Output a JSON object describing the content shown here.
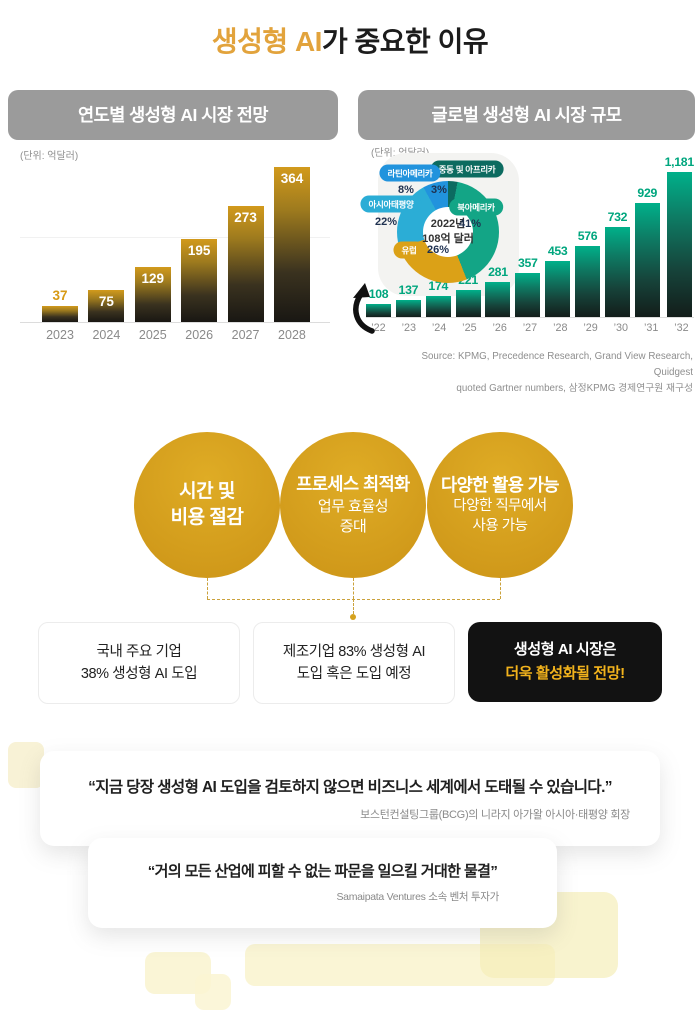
{
  "title": {
    "highlight": "생성형 AI",
    "rest": "가 중요한 이유"
  },
  "chart_data": [
    {
      "type": "bar",
      "title": "연도별 생성형 AI 시장 전망",
      "unit_label": "(단위: 억달러)",
      "categories": [
        "2023",
        "2024",
        "2025",
        "2026",
        "2027",
        "2028"
      ],
      "values": [
        37,
        75,
        129,
        195,
        273,
        364
      ],
      "value_labels": [
        "37",
        "75",
        "129",
        "195",
        "273",
        "364"
      ],
      "ylim": [
        0,
        400
      ],
      "grid": "single faint line",
      "legend": "none"
    },
    {
      "type": "bar",
      "title": "글로벌 생성형 AI 시장 규모",
      "unit_label": "(단위: 억달러)",
      "categories": [
        "’22",
        "’23",
        "’24",
        "’25",
        "’26",
        "’27",
        "’28",
        "’29",
        "’30",
        "’31",
        "’32"
      ],
      "values": [
        108,
        137,
        174,
        221,
        281,
        357,
        453,
        576,
        732,
        929,
        1181
      ],
      "value_labels": [
        "108",
        "137",
        "174",
        "221",
        "281",
        "357",
        "453",
        "576",
        "732",
        "929",
        "1,181"
      ],
      "ylim": [
        0,
        1200
      ],
      "grid": "off",
      "legend": "none",
      "source_lines": [
        "Source: KPMG, Precedence Research, Grand View Research, Quidgest",
        "quoted Gartner numbers, 삼정KPMG 경제연구원 재구성"
      ],
      "inset_pie": {
        "type": "pie",
        "center_lines": [
          "2022년",
          "108억 달러"
        ],
        "slices": [
          {
            "label": "중동 및 아프리카",
            "pct": 3,
            "pct_label": "3%",
            "color": "#0C6B60"
          },
          {
            "label": "북아메리카",
            "pct": 41,
            "pct_label": "41%",
            "color": "#13A586"
          },
          {
            "label": "유럽",
            "pct": 26,
            "pct_label": "26%",
            "color": "#DBA117"
          },
          {
            "label": "아시아태평양",
            "pct": 22,
            "pct_label": "22%",
            "color": "#2BADD6"
          },
          {
            "label": "라틴아메리카",
            "pct": 8,
            "pct_label": "8%",
            "color": "#2193DD"
          }
        ]
      }
    }
  ],
  "benefits": [
    {
      "title_lines": [
        "시간 및",
        "비용 절감"
      ],
      "sub_lines": []
    },
    {
      "title_lines": [
        "프로세스 최적화"
      ],
      "sub_lines": [
        "업무 효율성",
        "증대"
      ]
    },
    {
      "title_lines": [
        "다양한 활용 가능"
      ],
      "sub_lines": [
        "다양한 직무에서",
        "사용 가능"
      ]
    }
  ],
  "stat_boxes": [
    {
      "lines": [
        "국내 주요 기업",
        "38% 생성형 AI 도입"
      ]
    },
    {
      "lines": [
        "제조기업 83% 생성형 AI",
        "도입 혹은 도입 예정"
      ]
    }
  ],
  "highlight_box": {
    "line1": "생성형 AI 시장은",
    "line2": "더욱 활성화될 전망!"
  },
  "quotes": [
    {
      "text": "“지금 당장 생성형 AI 도입을 검토하지 않으면 비즈니스 세계에서 도태될 수 있습니다.”",
      "attribution": "보스턴컨설팅그룹(BCG)의 니라지 아가왈 아시아·태평양 회장"
    },
    {
      "text": "“거의 모든 산업에 피할 수 없는 파문을 일으킬 거대한 물결”",
      "attribution": "Samaipata Ventures 소속 벤처 투자가"
    }
  ],
  "colors": {
    "accent_gold": "#E2A33C",
    "header_gray": "#9B9B9B",
    "bar_gold_top": "#D29A1C",
    "bar_green_top": "#00B08A",
    "value_green": "#00A67E",
    "value_gold": "#D79A15",
    "highlight_yellow": "#F2B31C",
    "black_box": "#121212"
  },
  "icons": {
    "curved_arrow": "curved-arrow-icon"
  }
}
